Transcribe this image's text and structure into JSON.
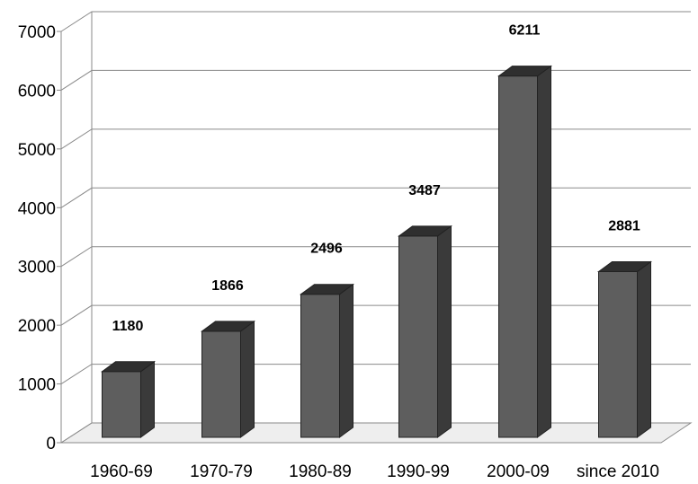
{
  "chart_data": {
    "type": "bar",
    "title": "",
    "xlabel": "",
    "ylabel": "",
    "categories": [
      "1960-69",
      "1970-79",
      "1980-89",
      "1990-99",
      "2000-09",
      "since 2010"
    ],
    "values": [
      1180,
      1866,
      2496,
      3487,
      6211,
      2881
    ],
    "ylim": [
      0,
      7000
    ],
    "yticks": [
      0,
      1000,
      2000,
      3000,
      4000,
      5000,
      6000,
      7000
    ],
    "grid": true,
    "legend": "none",
    "style": "3d",
    "colors": {
      "bar_front": "#5e5e5e",
      "bar_side": "#3a3a3a",
      "bar_top": "#2f2f2f",
      "grid": "#8a8a8a",
      "floor": "#eeeeee"
    }
  }
}
